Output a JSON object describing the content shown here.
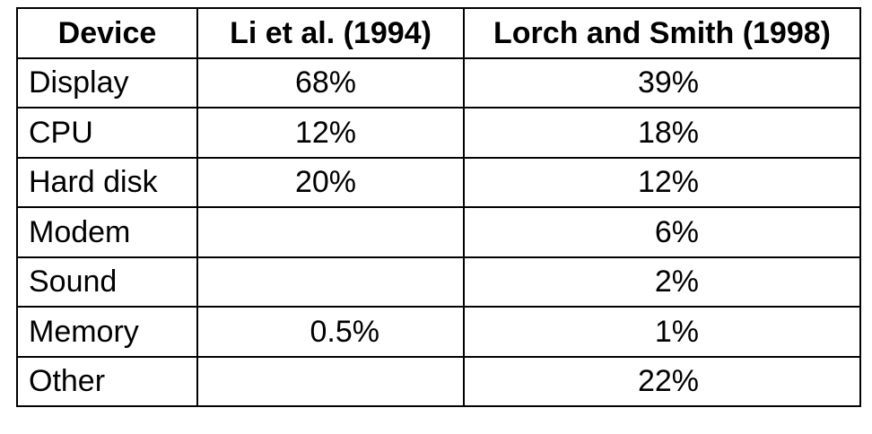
{
  "table": {
    "headers": [
      "Device",
      "Li et al. (1994)",
      "Lorch and Smith (1998)"
    ],
    "rows": [
      {
        "device": "Display",
        "li": "68%",
        "lorch": "39%"
      },
      {
        "device": "CPU",
        "li": "12%",
        "lorch": "18%"
      },
      {
        "device": "Hard disk",
        "li": "20%",
        "lorch": "12%"
      },
      {
        "device": "Modem",
        "li": "",
        "lorch": "6%"
      },
      {
        "device": "Sound",
        "li": "",
        "lorch": "2%"
      },
      {
        "device": "Memory",
        "li": "0.5%",
        "lorch": "1%"
      },
      {
        "device": "Other",
        "li": "",
        "lorch": "22%"
      }
    ]
  }
}
